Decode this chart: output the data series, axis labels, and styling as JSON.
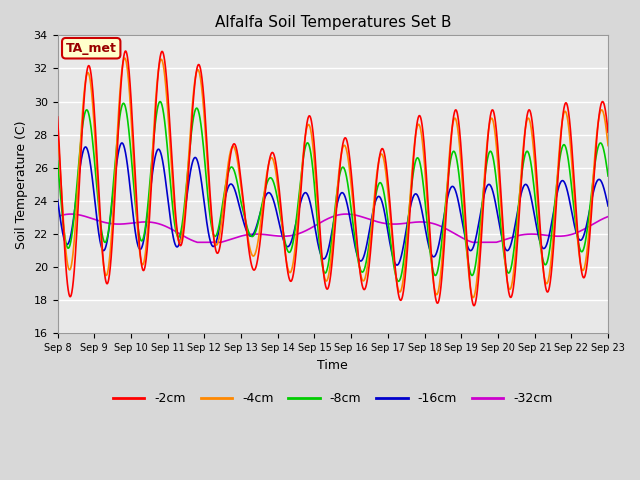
{
  "title": "Alfalfa Soil Temperatures Set B",
  "xlabel": "Time",
  "ylabel": "Soil Temperature (C)",
  "ylim": [
    16,
    34
  ],
  "xlim": [
    0,
    15
  ],
  "fig_bg_color": "#d8d8d8",
  "plot_bg_color": "#e8e8e8",
  "annotation_text": "TA_met",
  "annotation_bg": "#ffffcc",
  "annotation_border": "#cc0000",
  "series_colors": {
    "-2cm": "#ff0000",
    "-4cm": "#ff8800",
    "-8cm": "#00cc00",
    "-16cm": "#0000cc",
    "-32cm": "#cc00cc"
  },
  "x_tick_labels": [
    "Sep 8",
    "Sep 9",
    "Sep 10",
    "Sep 11",
    "Sep 12",
    "Sep 13",
    "Sep 14",
    "Sep 15",
    "Sep 16",
    "Sep 17",
    "Sep 18",
    "Sep 19",
    "Sep 20",
    "Sep 21",
    "Sep 22",
    "Sep 23"
  ],
  "x_tick_positions": [
    0,
    1,
    2,
    3,
    4,
    5,
    6,
    7,
    8,
    9,
    10,
    11,
    12,
    13,
    14,
    15
  ],
  "y_ticks": [
    16,
    18,
    20,
    22,
    24,
    26,
    28,
    30,
    32,
    34
  ],
  "linewidth": 1.2,
  "legend_labels": [
    "-2cm",
    "-4cm",
    "-8cm",
    "-16cm",
    "-32cm"
  ]
}
